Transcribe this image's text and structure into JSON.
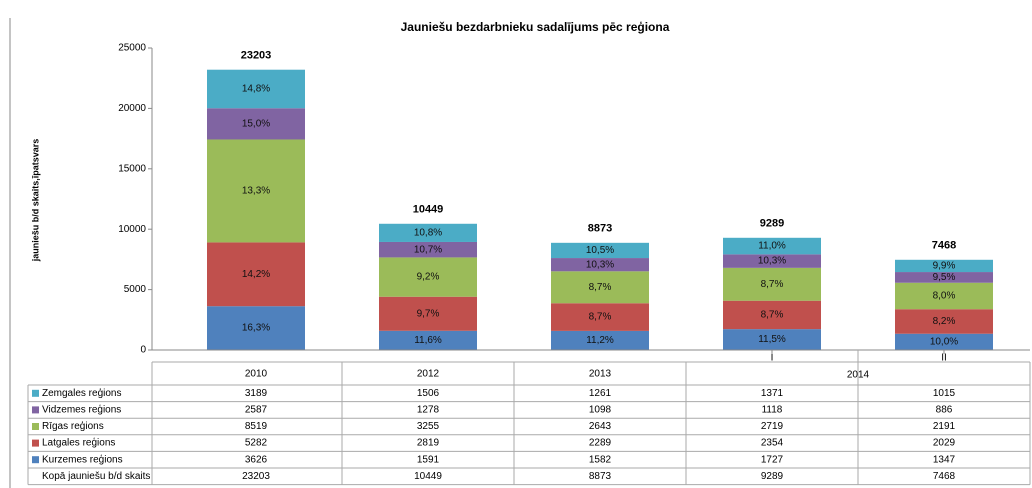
{
  "chart_data": {
    "type": "stacked_bar",
    "title": "Jauniešu bezdarbnieku sadalījums pēc reģiona",
    "ylabel": "jauniešu b/d skaits,īpatsvars",
    "categories": [
      "2010",
      "2012",
      "2013",
      "I",
      "II"
    ],
    "category_groups": [
      {
        "label": "2014",
        "from": 3,
        "to": 4
      }
    ],
    "ylim": [
      0,
      25000
    ],
    "yticks": [
      0,
      5000,
      10000,
      15000,
      20000,
      25000
    ],
    "series": [
      {
        "name": "Kurzemes reģions",
        "color": "#4f81bd",
        "values": [
          3626,
          1591,
          1582,
          1727,
          1347
        ],
        "percent_labels": [
          "16,3%",
          "11,6%",
          "11,2%",
          "11,5%",
          "10,0%"
        ]
      },
      {
        "name": "Latgales reģions",
        "color": "#c0504d",
        "values": [
          5282,
          2819,
          2289,
          2354,
          2029
        ],
        "percent_labels": [
          "14,2%",
          "9,7%",
          "8,7%",
          "8,7%",
          "8,2%"
        ]
      },
      {
        "name": "Rīgas reģions",
        "color": "#9bbb59",
        "values": [
          8519,
          3255,
          2643,
          2719,
          2191
        ],
        "percent_labels": [
          "13,3%",
          "9,2%",
          "8,7%",
          "8,7%",
          "8,0%"
        ]
      },
      {
        "name": "Vidzemes reģions",
        "color": "#8064a2",
        "values": [
          2587,
          1278,
          1098,
          1118,
          886
        ],
        "percent_labels": [
          "15,0%",
          "10,7%",
          "10,3%",
          "10,3%",
          "9,5%"
        ]
      },
      {
        "name": "Zemgales reģions",
        "color": "#4bacc6",
        "values": [
          3189,
          1506,
          1261,
          1371,
          1015
        ],
        "percent_labels": [
          "14,8%",
          "10,8%",
          "10,5%",
          "11,0%",
          "9,9%"
        ]
      }
    ],
    "totals": {
      "name": "Kopā jauniešu b/d skaits",
      "values": [
        23203,
        10449,
        8873,
        9289,
        7468
      ]
    }
  }
}
